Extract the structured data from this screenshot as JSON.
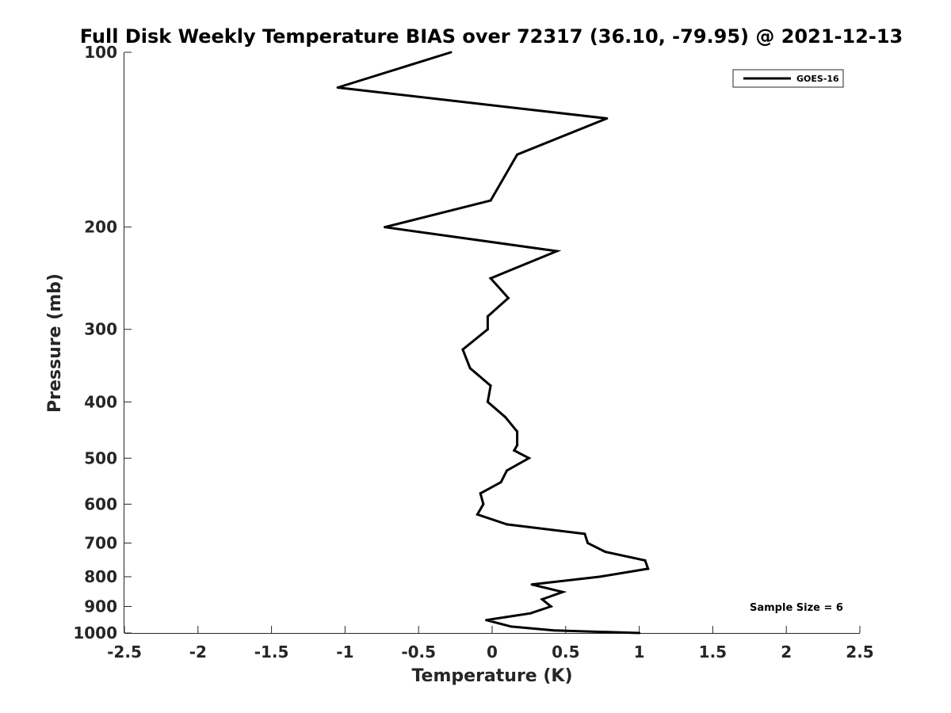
{
  "chart_data": {
    "type": "line",
    "title": "Full Disk Weekly Temperature BIAS over 72317 (36.10, -79.95) @ 2021-12-13",
    "xlabel": "Temperature (K)",
    "ylabel": "Pressure (mb)",
    "xlim": [
      -2.5,
      2.5
    ],
    "ylim": [
      1000,
      100
    ],
    "yscale": "log",
    "y_reversed": true,
    "grid": false,
    "legend_position": "top-right",
    "x_ticks": [
      -2.5,
      -2,
      -1.5,
      -1,
      -0.5,
      0,
      0.5,
      1,
      1.5,
      2,
      2.5
    ],
    "x_tick_labels": [
      "-2.5",
      "-2",
      "-1.5",
      "-1",
      "-0.5",
      "0",
      "0.5",
      "1",
      "1.5",
      "2",
      "2.5"
    ],
    "y_ticks": [
      100,
      200,
      300,
      400,
      500,
      600,
      700,
      800,
      900,
      1000
    ],
    "y_tick_labels": [
      "100",
      "200",
      "300",
      "400",
      "500",
      "600",
      "700",
      "800",
      "900",
      "1000"
    ],
    "series": [
      {
        "name": "GOES-16",
        "color": "#000000",
        "points": [
          {
            "x": -0.28,
            "p": 100
          },
          {
            "x": -1.05,
            "p": 115
          },
          {
            "x": 0.78,
            "p": 130
          },
          {
            "x": 0.17,
            "p": 150
          },
          {
            "x": -0.01,
            "p": 180
          },
          {
            "x": -0.73,
            "p": 200
          },
          {
            "x": 0.44,
            "p": 220
          },
          {
            "x": -0.01,
            "p": 245
          },
          {
            "x": 0.11,
            "p": 265
          },
          {
            "x": -0.03,
            "p": 285
          },
          {
            "x": -0.03,
            "p": 300
          },
          {
            "x": -0.2,
            "p": 325
          },
          {
            "x": -0.15,
            "p": 350
          },
          {
            "x": -0.01,
            "p": 375
          },
          {
            "x": -0.03,
            "p": 400
          },
          {
            "x": 0.09,
            "p": 425
          },
          {
            "x": 0.17,
            "p": 450
          },
          {
            "x": 0.17,
            "p": 475
          },
          {
            "x": 0.15,
            "p": 485
          },
          {
            "x": 0.25,
            "p": 500
          },
          {
            "x": 0.1,
            "p": 525
          },
          {
            "x": 0.06,
            "p": 550
          },
          {
            "x": -0.08,
            "p": 575
          },
          {
            "x": -0.06,
            "p": 600
          },
          {
            "x": -0.1,
            "p": 625
          },
          {
            "x": 0.1,
            "p": 650
          },
          {
            "x": 0.63,
            "p": 675
          },
          {
            "x": 0.65,
            "p": 700
          },
          {
            "x": 0.77,
            "p": 725
          },
          {
            "x": 1.04,
            "p": 750
          },
          {
            "x": 1.06,
            "p": 775
          },
          {
            "x": 0.73,
            "p": 800
          },
          {
            "x": 0.27,
            "p": 825
          },
          {
            "x": 0.48,
            "p": 850
          },
          {
            "x": 0.34,
            "p": 875
          },
          {
            "x": 0.4,
            "p": 900
          },
          {
            "x": 0.26,
            "p": 925
          },
          {
            "x": -0.04,
            "p": 950
          },
          {
            "x": 0.13,
            "p": 975
          },
          {
            "x": 0.42,
            "p": 990
          },
          {
            "x": 1.0,
            "p": 1000
          }
        ]
      }
    ],
    "annotation": "Sample Size = 6"
  }
}
